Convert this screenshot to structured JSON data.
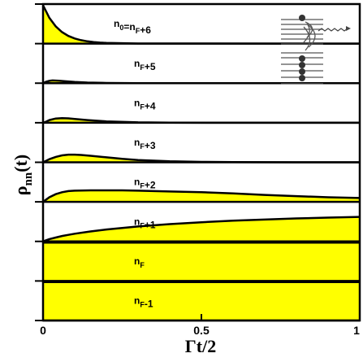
{
  "chart_data": {
    "type": "area",
    "xlabel": "Γt/2",
    "ylabel": "ρnn(t)",
    "xlim": [
      0,
      1
    ],
    "x_ticks": [
      "0",
      "0.5",
      "1"
    ],
    "grid": false,
    "panels": [
      {
        "label": "n0=nF+6",
        "fill_color": "#ffff00",
        "x": [
          0,
          0.02,
          0.04,
          0.06,
          0.08,
          0.1,
          0.12,
          0.14,
          0.16,
          0.18,
          0.2,
          0.3,
          1.0
        ],
        "y": [
          1.0,
          0.67,
          0.45,
          0.3,
          0.2,
          0.135,
          0.09,
          0.06,
          0.04,
          0.027,
          0.018,
          0.003,
          0.0
        ]
      },
      {
        "label": "nF+5",
        "fill_color": "#ffff00",
        "x": [
          0,
          0.01,
          0.02,
          0.03,
          0.05,
          0.07,
          0.1,
          0.14,
          0.2,
          0.3,
          0.5,
          1.0
        ],
        "y": [
          0.0,
          0.04,
          0.06,
          0.07,
          0.065,
          0.05,
          0.03,
          0.015,
          0.005,
          0.001,
          0.0,
          0.0
        ]
      },
      {
        "label": "nF+4",
        "fill_color": "#ffff00",
        "x": [
          0,
          0.01,
          0.02,
          0.04,
          0.06,
          0.08,
          0.1,
          0.14,
          0.2,
          0.3,
          0.4,
          0.6,
          1.0
        ],
        "y": [
          0.0,
          0.03,
          0.07,
          0.11,
          0.12,
          0.115,
          0.1,
          0.07,
          0.035,
          0.01,
          0.003,
          0.0,
          0.0
        ]
      },
      {
        "label": "nF+3",
        "fill_color": "#ffff00",
        "x": [
          0,
          0.01,
          0.02,
          0.04,
          0.06,
          0.08,
          0.1,
          0.12,
          0.15,
          0.2,
          0.25,
          0.3,
          0.4,
          0.5,
          0.6,
          0.8,
          1.0
        ],
        "y": [
          0.0,
          0.04,
          0.08,
          0.14,
          0.18,
          0.2,
          0.2,
          0.19,
          0.17,
          0.13,
          0.09,
          0.06,
          0.025,
          0.01,
          0.004,
          0.0,
          0.0
        ]
      },
      {
        "label": "nF+2",
        "fill_color": "#ffff00",
        "x": [
          0,
          0.01,
          0.02,
          0.04,
          0.06,
          0.08,
          0.1,
          0.15,
          0.2,
          0.25,
          0.3,
          0.4,
          0.5,
          0.6,
          0.7,
          0.8,
          0.9,
          1.0
        ],
        "y": [
          0.0,
          0.06,
          0.12,
          0.2,
          0.25,
          0.28,
          0.29,
          0.3,
          0.3,
          0.3,
          0.29,
          0.27,
          0.25,
          0.22,
          0.18,
          0.15,
          0.12,
          0.1
        ]
      },
      {
        "label": "nF+1",
        "fill_color": "#ffff00",
        "x": [
          0,
          0.01,
          0.02,
          0.04,
          0.06,
          0.08,
          0.1,
          0.15,
          0.2,
          0.3,
          0.4,
          0.5,
          0.6,
          0.7,
          0.8,
          0.9,
          1.0
        ],
        "y": [
          0.0,
          0.03,
          0.06,
          0.1,
          0.14,
          0.17,
          0.2,
          0.26,
          0.31,
          0.39,
          0.45,
          0.5,
          0.54,
          0.57,
          0.6,
          0.62,
          0.64
        ]
      },
      {
        "label": "nF",
        "fill_color": "#ffff00",
        "x": [
          0,
          1.0
        ],
        "y": [
          1.0,
          1.0
        ]
      },
      {
        "label": "nF-1",
        "fill_color": "#ffff00",
        "x": [
          0,
          1.0
        ],
        "y": [
          1.0,
          1.0
        ]
      }
    ]
  }
}
